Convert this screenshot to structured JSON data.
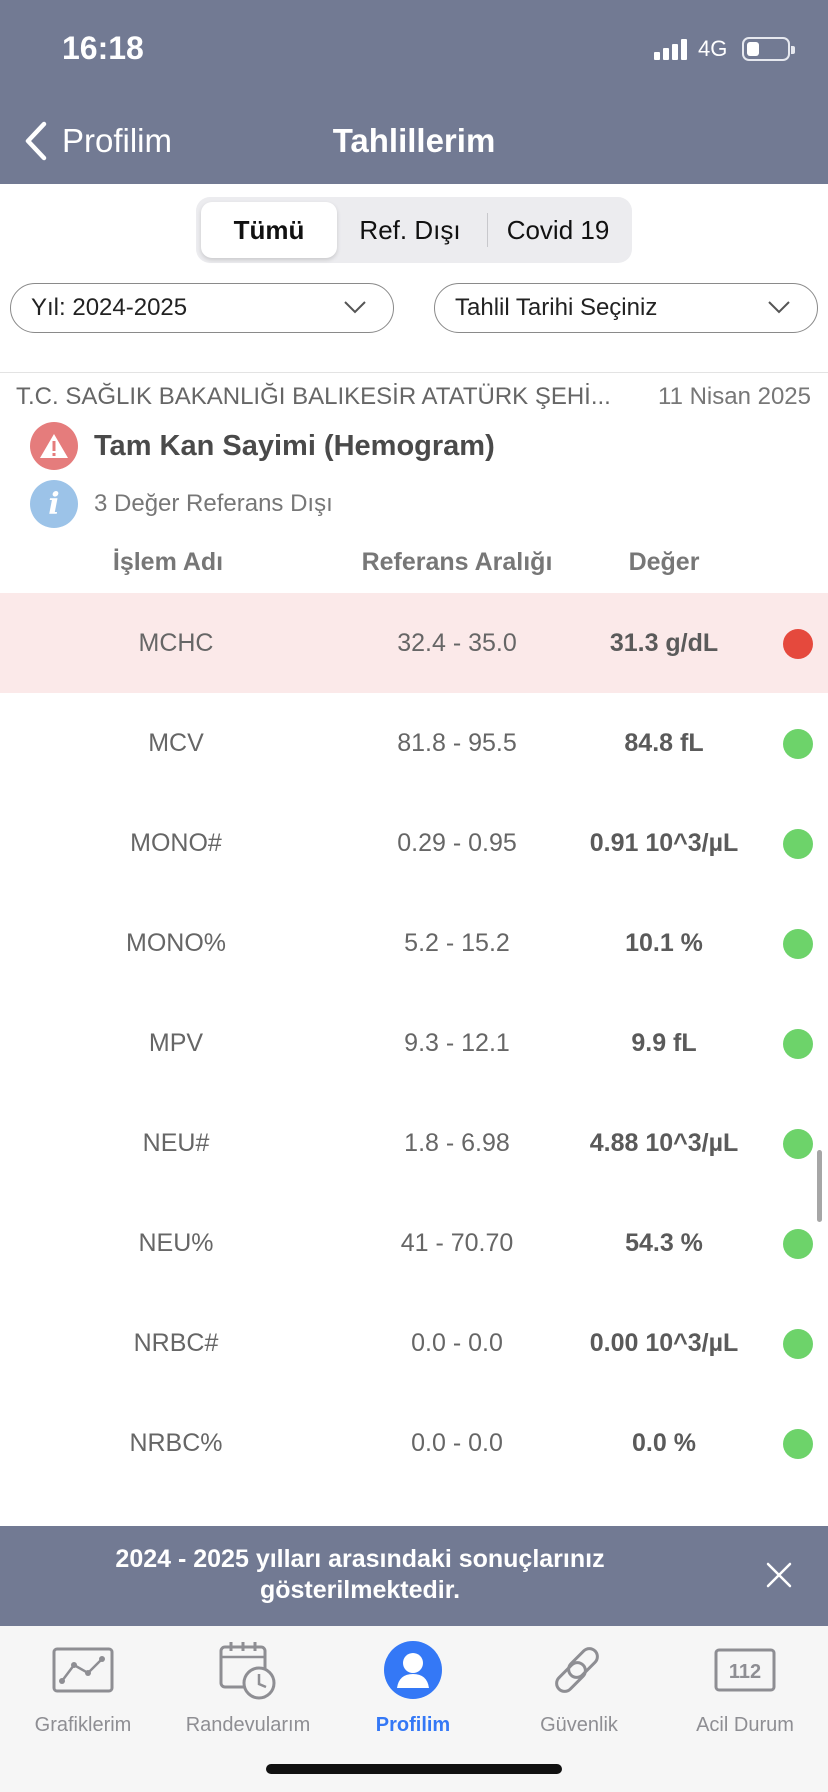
{
  "status_bar": {
    "time": "16:18",
    "network": "4G"
  },
  "nav": {
    "back_label": "Profilim",
    "title": "Tahlillerim"
  },
  "segments": [
    {
      "label": "Tümü",
      "active": true
    },
    {
      "label": "Ref. Dışı",
      "active": false
    },
    {
      "label": "Covid 19",
      "active": false
    }
  ],
  "filters": {
    "year": "Yıl: 2024-2025",
    "date": "Tahlil Tarihi Seçiniz"
  },
  "report": {
    "hospital": "T.C. SAĞLIK BAKANLIĞI BALIKESİR ATATÜRK ŞEHİ...",
    "date": "11 Nisan 2025",
    "test_title": "Tam Kan Sayimi (Hemogram)",
    "out_of_range_text": "3 Değer Referans Dışı"
  },
  "table": {
    "headers": [
      "İşlem Adı",
      "Referans Aralığı",
      "Değer"
    ],
    "rows": [
      {
        "name": "MCHC",
        "range": "32.4 - 35.0",
        "value": "31.3 g/dL",
        "status": "out"
      },
      {
        "name": "MCV",
        "range": "81.8 - 95.5",
        "value": "84.8 fL",
        "status": "normal"
      },
      {
        "name": "MONO#",
        "range": "0.29 - 0.95",
        "value": "0.91 10^3/µL",
        "status": "normal"
      },
      {
        "name": "MONO%",
        "range": "5.2 - 15.2",
        "value": "10.1 %",
        "status": "normal"
      },
      {
        "name": "MPV",
        "range": "9.3 - 12.1",
        "value": "9.9 fL",
        "status": "normal"
      },
      {
        "name": "NEU#",
        "range": "1.8 - 6.98",
        "value": "4.88 10^3/µL",
        "status": "normal"
      },
      {
        "name": "NEU%",
        "range": "41 - 70.70",
        "value": "54.3 %",
        "status": "normal"
      },
      {
        "name": "NRBC#",
        "range": "0.0 - 0.0",
        "value": "0.00 10^3/µL",
        "status": "normal"
      },
      {
        "name": "NRBC%",
        "range": "0.0 - 0.0",
        "value": "0.0 %",
        "status": "normal"
      }
    ]
  },
  "banner": {
    "text": "2024 - 2025 yılları arasındaki sonuçlarınız gösterilmektedir."
  },
  "tabbar": [
    {
      "label": "Grafiklerim",
      "icon": "chart-icon",
      "active": false
    },
    {
      "label": "Randevularım",
      "icon": "calendar-clock-icon",
      "active": false
    },
    {
      "label": "Profilim",
      "icon": "profile-icon",
      "active": true
    },
    {
      "label": "Güvenlik",
      "icon": "link-icon",
      "active": false
    },
    {
      "label": "Acil Durum",
      "icon": "emergency-112-icon",
      "badge_text": "112",
      "active": false
    }
  ],
  "colors": {
    "header": "#727a93",
    "out_of_range_row": "#fbe9e9",
    "status_out": "#e5493d",
    "status_normal": "#6dd36a",
    "active_tab": "#3478f6"
  }
}
